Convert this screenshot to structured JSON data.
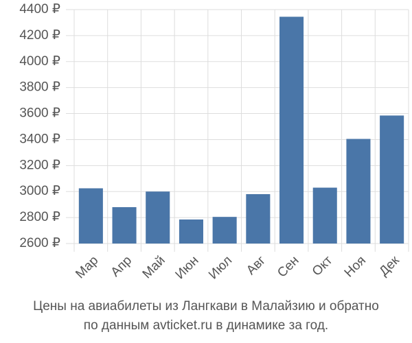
{
  "chart_data": {
    "type": "bar",
    "title": [
      "Цены на авиабилеты из Лангкави в Малайзию и обратно",
      "по данным avticket.ru в динамике за год."
    ],
    "categories": [
      "Мар",
      "Апр",
      "Май",
      "Июн",
      "Июл",
      "Авг",
      "Сен",
      "Окт",
      "Ноя",
      "Дек"
    ],
    "values": [
      3025,
      2880,
      3000,
      2785,
      2805,
      2980,
      4345,
      3030,
      3405,
      3585
    ],
    "color": "#4a76a8",
    "ylim": [
      2600,
      4400
    ],
    "yticks": [
      {
        "value": 2600,
        "label": "2600 ₽"
      },
      {
        "value": 2800,
        "label": "2800 ₽"
      },
      {
        "value": 3000,
        "label": "3000 ₽"
      },
      {
        "value": 3200,
        "label": "3200 ₽"
      },
      {
        "value": 3400,
        "label": "3400 ₽"
      },
      {
        "value": 3600,
        "label": "3600 ₽"
      },
      {
        "value": 3800,
        "label": "3800 ₽"
      },
      {
        "value": 4000,
        "label": "4000 ₽"
      },
      {
        "value": 4200,
        "label": "4200 ₽"
      },
      {
        "value": 4400,
        "label": "4400 ₽"
      }
    ],
    "grid": true
  }
}
